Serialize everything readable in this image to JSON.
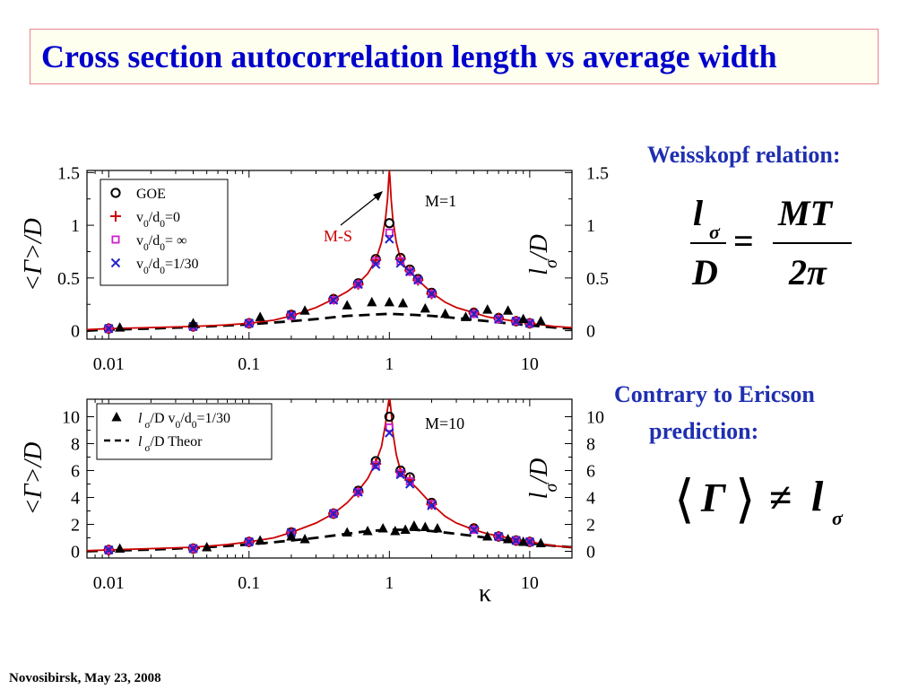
{
  "slide": {
    "title": "Cross section autocorrelation length vs average width",
    "weisskopf_label": "Weisskopf relation:",
    "weisskopf_formula": {
      "lhs_num": "l",
      "lhs_sub": "σ",
      "lhs_den": "D",
      "eq": "=",
      "rhs_num": "MT",
      "rhs_den": "2π"
    },
    "contrary_line1": "Contrary to Ericson",
    "contrary_line2": "prediction:",
    "ericson_formula": {
      "left_bracket": "⟨",
      "gamma": "Γ",
      "right_bracket": "⟩",
      "neq": "≠",
      "l": "l",
      "sub": "σ"
    },
    "footer": "Novosibirsk,  May 23,  2008"
  },
  "chart_data": [
    {
      "type": "scatter",
      "panel_label": "M=1",
      "annotation": "M-S",
      "x_scale": "log",
      "xlim": [
        0.007,
        20
      ],
      "x_ticks": [
        "0.01",
        "0.1",
        "1",
        "10"
      ],
      "ylim": [
        -0.08,
        1.52
      ],
      "y_ticks": [
        "0",
        "0.5",
        "1",
        "1.5"
      ],
      "y_ticks_right": [
        "0",
        "0.5",
        "1",
        "1.5"
      ],
      "ylabel_left": "<Γ>/D",
      "ylabel_right": "lσ/D",
      "legend": {
        "position": "top-left",
        "entries": [
          "GOE",
          "v0/d0=0",
          "v0/d0= ∞",
          "v0/d0=1/30"
        ]
      },
      "series": [
        {
          "name": "GOE",
          "marker": "circle",
          "color": "#000000",
          "x": [
            0.01,
            0.04,
            0.1,
            0.2,
            0.4,
            0.6,
            0.8,
            1.0,
            1.2,
            1.4,
            1.6,
            2.0,
            4.0,
            6.0,
            8.0,
            10.0
          ],
          "y": [
            0.02,
            0.04,
            0.07,
            0.15,
            0.3,
            0.45,
            0.68,
            1.02,
            0.69,
            0.58,
            0.49,
            0.36,
            0.17,
            0.12,
            0.09,
            0.07
          ]
        },
        {
          "name": "v0/d0=0",
          "marker": "plus",
          "color": "#cc0000",
          "x": [
            0.01,
            0.04,
            0.1,
            0.2,
            0.4,
            0.6,
            0.8,
            1.2,
            1.4,
            1.6,
            2.0,
            4.0,
            6.0,
            8.0,
            10.0
          ],
          "y": [
            0.02,
            0.04,
            0.07,
            0.15,
            0.3,
            0.44,
            0.67,
            0.68,
            0.57,
            0.48,
            0.35,
            0.17,
            0.12,
            0.09,
            0.07
          ]
        },
        {
          "name": "v0/d0= ∞",
          "marker": "square",
          "color": "#cc22cc",
          "x": [
            0.01,
            0.04,
            0.1,
            0.2,
            0.4,
            0.6,
            0.8,
            1.0,
            1.2,
            1.4,
            1.6,
            2.0,
            4.0,
            6.0,
            8.0,
            10.0
          ],
          "y": [
            0.02,
            0.04,
            0.07,
            0.14,
            0.29,
            0.44,
            0.66,
            0.93,
            0.66,
            0.56,
            0.48,
            0.35,
            0.16,
            0.11,
            0.09,
            0.07
          ]
        },
        {
          "name": "v0/d0=1/30",
          "marker": "cross",
          "color": "#2222cc",
          "x": [
            0.01,
            0.04,
            0.1,
            0.2,
            0.4,
            0.6,
            0.8,
            1.0,
            1.2,
            1.4,
            1.6,
            2.0,
            4.0,
            6.0,
            8.0,
            10.0
          ],
          "y": [
            0.02,
            0.04,
            0.07,
            0.15,
            0.29,
            0.44,
            0.63,
            0.87,
            0.64,
            0.56,
            0.48,
            0.35,
            0.16,
            0.11,
            0.09,
            0.07
          ]
        },
        {
          "name": "lσ/D v0/d0=1/30",
          "marker": "triangle",
          "color": "#000000",
          "x": [
            0.012,
            0.04,
            0.12,
            0.25,
            0.5,
            0.75,
            1.0,
            1.25,
            1.8,
            2.5,
            3.5,
            5.0,
            7.0,
            9.0,
            12.0
          ],
          "y": [
            0.03,
            0.07,
            0.13,
            0.19,
            0.24,
            0.27,
            0.27,
            0.26,
            0.21,
            0.16,
            0.13,
            0.2,
            0.19,
            0.11,
            0.09
          ]
        },
        {
          "name": "lσ/D Theor",
          "style": "dashed",
          "color": "#000000",
          "x": [
            0.007,
            0.01,
            0.02,
            0.05,
            0.1,
            0.2,
            0.3,
            0.5,
            0.7,
            1.0,
            1.5,
            2.0,
            3.0,
            5.0,
            7.0,
            10.0,
            15.0,
            20.0
          ],
          "y": [
            0.0,
            0.01,
            0.02,
            0.04,
            0.06,
            0.09,
            0.11,
            0.14,
            0.15,
            0.16,
            0.15,
            0.14,
            0.12,
            0.09,
            0.07,
            0.05,
            0.03,
            0.02
          ]
        },
        {
          "name": "M-S curve",
          "style": "solid",
          "color": "#cc0000",
          "x": [
            0.007,
            0.01,
            0.02,
            0.04,
            0.07,
            0.1,
            0.15,
            0.2,
            0.3,
            0.4,
            0.5,
            0.6,
            0.7,
            0.8,
            0.88,
            0.94,
            0.97,
            0.99,
            1.0,
            1.01,
            1.03,
            1.06,
            1.12,
            1.2,
            1.3,
            1.4,
            1.6,
            2.0,
            2.5,
            3.0,
            4.0,
            5.0,
            7.0,
            10.0,
            15.0,
            20.0
          ],
          "y": [
            0.01,
            0.02,
            0.03,
            0.04,
            0.055,
            0.07,
            0.1,
            0.14,
            0.22,
            0.3,
            0.37,
            0.45,
            0.54,
            0.67,
            0.84,
            1.07,
            1.25,
            1.45,
            1.52,
            1.45,
            1.25,
            1.05,
            0.84,
            0.68,
            0.6,
            0.56,
            0.48,
            0.36,
            0.27,
            0.22,
            0.17,
            0.13,
            0.1,
            0.07,
            0.04,
            0.03
          ]
        }
      ]
    },
    {
      "type": "scatter",
      "panel_label": "M=10",
      "x_scale": "log",
      "xlim": [
        0.007,
        20
      ],
      "x_ticks": [
        "0.01",
        "0.1",
        "1",
        "10"
      ],
      "xlabel": "κ",
      "ylim": [
        -0.5,
        11.3
      ],
      "y_ticks": [
        "0",
        "2",
        "4",
        "6",
        "8",
        "10"
      ],
      "y_ticks_right": [
        "0",
        "2",
        "4",
        "6",
        "8",
        "10"
      ],
      "ylabel_left": "<Γ>/D",
      "ylabel_right": "lσ/D",
      "legend": {
        "position": "top-left",
        "entries": [
          "l σ/D v0/d0=1/30",
          "l σ/D Theor"
        ]
      },
      "series": [
        {
          "name": "GOE",
          "marker": "circle",
          "color": "#000000",
          "x": [
            0.01,
            0.04,
            0.1,
            0.2,
            0.4,
            0.6,
            0.8,
            1.0,
            1.2,
            1.4,
            2.0,
            4.0,
            6.0,
            8.0,
            10.0
          ],
          "y": [
            0.1,
            0.2,
            0.7,
            1.4,
            2.8,
            4.5,
            6.7,
            10.0,
            6.0,
            5.5,
            3.6,
            1.7,
            1.1,
            0.8,
            0.7
          ]
        },
        {
          "name": "v0/d0=0",
          "marker": "plus",
          "color": "#cc0000",
          "x": [
            0.01,
            0.04,
            0.1,
            0.2,
            0.4,
            0.6,
            0.8,
            1.2,
            1.4,
            2.0,
            4.0,
            6.0,
            8.0,
            10.0
          ],
          "y": [
            0.1,
            0.2,
            0.7,
            1.4,
            2.8,
            4.4,
            6.5,
            5.9,
            5.3,
            3.5,
            1.7,
            1.1,
            0.8,
            0.7
          ]
        },
        {
          "name": "v0/d0= ∞",
          "marker": "square",
          "color": "#cc22cc",
          "x": [
            0.01,
            0.04,
            0.1,
            0.2,
            0.4,
            0.6,
            0.8,
            1.0,
            1.2,
            1.4,
            2.0,
            4.0,
            6.0,
            8.0,
            10.0
          ],
          "y": [
            0.1,
            0.2,
            0.7,
            1.3,
            2.8,
            4.4,
            6.4,
            9.2,
            5.8,
            5.2,
            3.5,
            1.6,
            1.1,
            0.8,
            0.7
          ]
        },
        {
          "name": "v0/d0=1/30",
          "marker": "cross",
          "color": "#2222cc",
          "x": [
            0.01,
            0.04,
            0.1,
            0.2,
            0.4,
            0.6,
            0.8,
            1.0,
            1.2,
            1.4,
            2.0,
            4.0,
            6.0,
            8.0,
            10.0
          ],
          "y": [
            0.1,
            0.2,
            0.7,
            1.4,
            2.8,
            4.4,
            6.3,
            8.8,
            5.7,
            5.0,
            3.4,
            1.6,
            1.1,
            0.8,
            0.7
          ]
        },
        {
          "name": "l σ/D v0/d0=1/30",
          "marker": "triangle",
          "color": "#000000",
          "x": [
            0.012,
            0.05,
            0.12,
            0.2,
            0.25,
            0.5,
            0.7,
            0.9,
            1.1,
            1.3,
            1.5,
            1.8,
            2.2,
            5.0,
            7.0,
            9.0,
            12.0
          ],
          "y": [
            0.2,
            0.3,
            0.8,
            1.1,
            0.9,
            1.4,
            1.5,
            1.7,
            1.5,
            1.6,
            1.9,
            1.8,
            1.7,
            1.1,
            0.9,
            0.7,
            0.6
          ]
        },
        {
          "name": "l σ/D Theor",
          "style": "dashed",
          "color": "#000000",
          "x": [
            0.007,
            0.01,
            0.02,
            0.05,
            0.1,
            0.2,
            0.3,
            0.5,
            0.7,
            1.0,
            1.5,
            2.0,
            3.0,
            5.0,
            7.0,
            10.0,
            15.0,
            20.0
          ],
          "y": [
            0.0,
            0.05,
            0.12,
            0.3,
            0.5,
            0.8,
            1.0,
            1.3,
            1.5,
            1.6,
            1.6,
            1.5,
            1.3,
            1.0,
            0.8,
            0.6,
            0.4,
            0.3
          ]
        },
        {
          "name": "M-S curve",
          "style": "solid",
          "color": "#cc0000",
          "x": [
            0.007,
            0.01,
            0.02,
            0.04,
            0.07,
            0.1,
            0.15,
            0.2,
            0.3,
            0.4,
            0.5,
            0.6,
            0.7,
            0.8,
            0.88,
            0.94,
            0.97,
            0.99,
            1.0,
            1.01,
            1.03,
            1.06,
            1.12,
            1.2,
            1.3,
            1.4,
            1.6,
            2.0,
            2.5,
            3.0,
            4.0,
            5.0,
            7.0,
            10.0,
            15.0,
            20.0
          ],
          "y": [
            0.05,
            0.1,
            0.2,
            0.3,
            0.5,
            0.7,
            1.0,
            1.4,
            2.1,
            2.8,
            3.6,
            4.5,
            5.4,
            6.6,
            7.8,
            9.5,
            10.6,
            11.2,
            11.3,
            11.2,
            10.4,
            8.8,
            7.2,
            6.0,
            5.6,
            5.2,
            4.6,
            3.5,
            2.6,
            2.1,
            1.6,
            1.3,
            1.0,
            0.7,
            0.4,
            0.3
          ]
        }
      ]
    }
  ]
}
